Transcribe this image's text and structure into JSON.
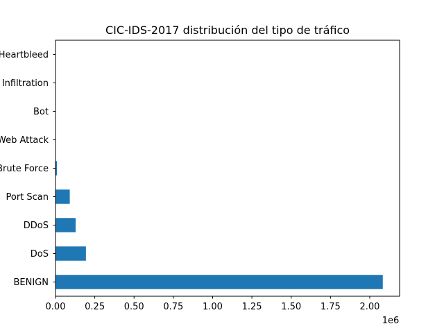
{
  "chart_data": {
    "type": "bar",
    "orientation": "horizontal",
    "title": "CIC-IDS-2017 distribución del tipo de tráfico",
    "categories": [
      "BENIGN",
      "DoS",
      "DDoS",
      "Port Scan",
      "Brute Force",
      "Web Attack",
      "Bot",
      "Infiltration",
      "Heartbleed"
    ],
    "values": [
      2083000,
      193700,
      128000,
      90800,
      9150,
      2180,
      1970,
      36,
      11
    ],
    "xlim": [
      0,
      2190000
    ],
    "x_ticks": [
      0,
      250000,
      500000,
      750000,
      1000000,
      1250000,
      1500000,
      1750000,
      2000000
    ],
    "x_tick_labels": [
      "0.00",
      "0.25",
      "0.50",
      "0.75",
      "1.00",
      "1.25",
      "1.50",
      "1.75",
      "2.00"
    ],
    "x_offset_label": "1e6",
    "bar_color": "#1f77b4",
    "grid": false
  }
}
